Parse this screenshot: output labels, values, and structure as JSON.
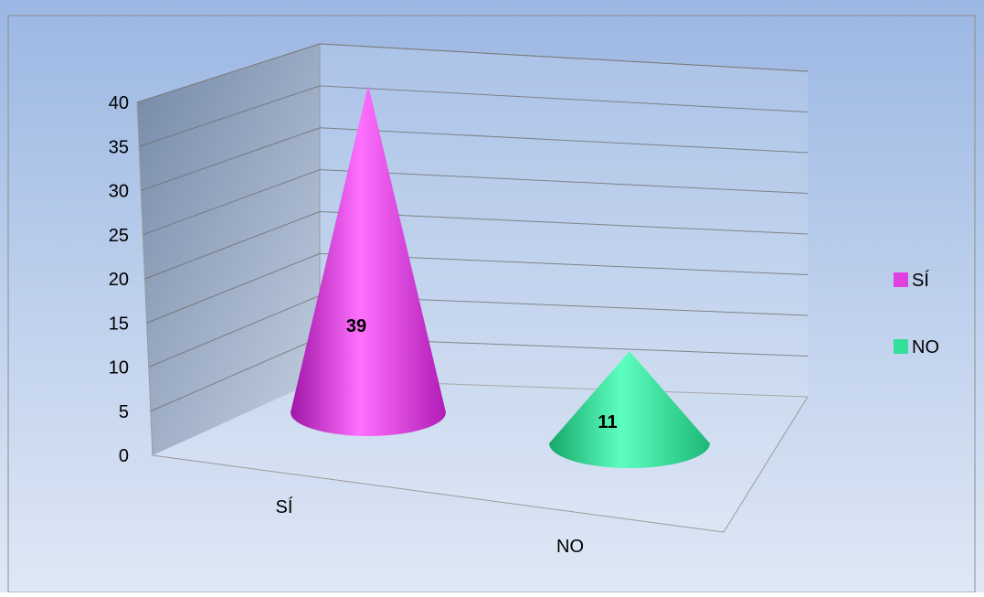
{
  "chart_data": {
    "type": "bar",
    "categories": [
      "SÍ",
      "NO"
    ],
    "values": [
      39,
      11
    ],
    "ylim": [
      0,
      40
    ],
    "y_ticks": [
      0,
      5,
      10,
      15,
      20,
      25,
      30,
      35,
      40
    ],
    "legend_position": "right",
    "legend": [
      {
        "label": "SÍ",
        "color": "#e040e0"
      },
      {
        "label": "NO",
        "color": "#33e09a"
      }
    ],
    "data_labels": [
      "39",
      "11"
    ],
    "grid": true,
    "style": "3d-cone",
    "colors": {
      "SÍ": "#e040e0",
      "NO": "#33e09a"
    }
  }
}
